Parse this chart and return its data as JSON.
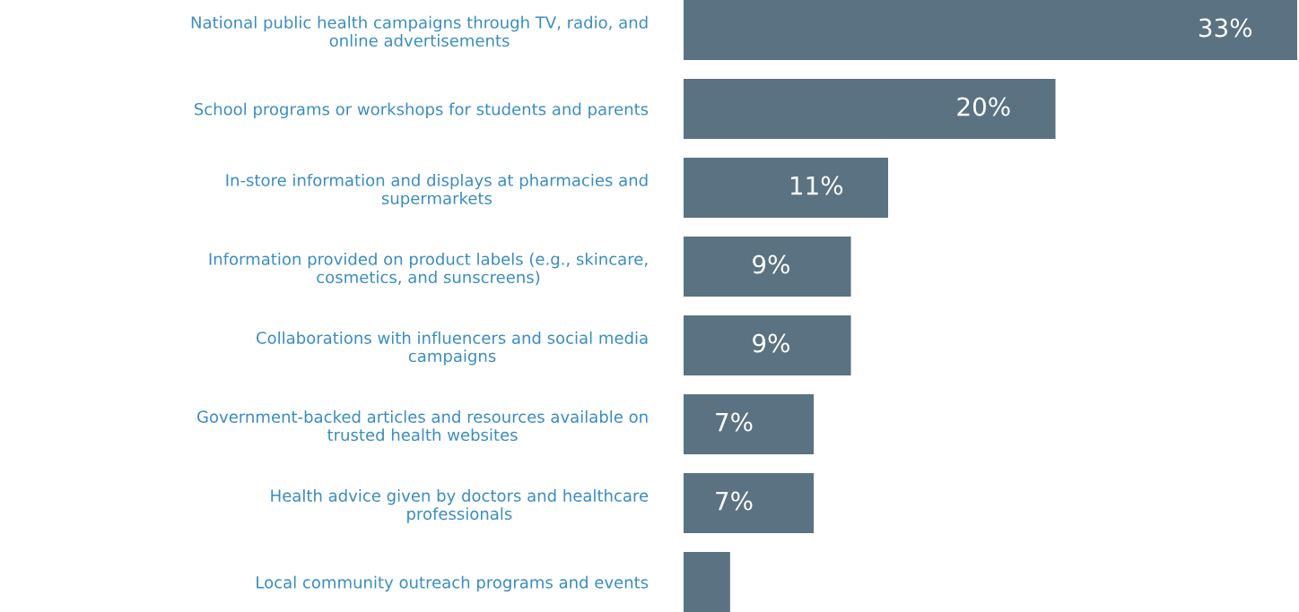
{
  "chart_data": {
    "type": "bar",
    "orientation": "horizontal",
    "categories": [
      "National public health campaigns through TV, radio, and\nonline advertisements",
      "School programs or workshops for students and parents",
      "In-store information and displays at pharmacies and\nsupermarkets",
      "Information provided on product labels (e.g., skincare,\ncosmetics, and sunscreens)",
      "Collaborations with influencers and social media\ncampaigns",
      "Government-backed articles and resources available on\ntrusted health websites",
      "Health advice given by doctors and healthcare\nprofessionals",
      "Local community outreach programs and events"
    ],
    "values": [
      33,
      20,
      11,
      9,
      9,
      7,
      7,
      2.5
    ],
    "value_labels": [
      "33%",
      "20%",
      "11%",
      "9%",
      "9%",
      "7%",
      "7%",
      null
    ],
    "color": "#5b7282"
  }
}
